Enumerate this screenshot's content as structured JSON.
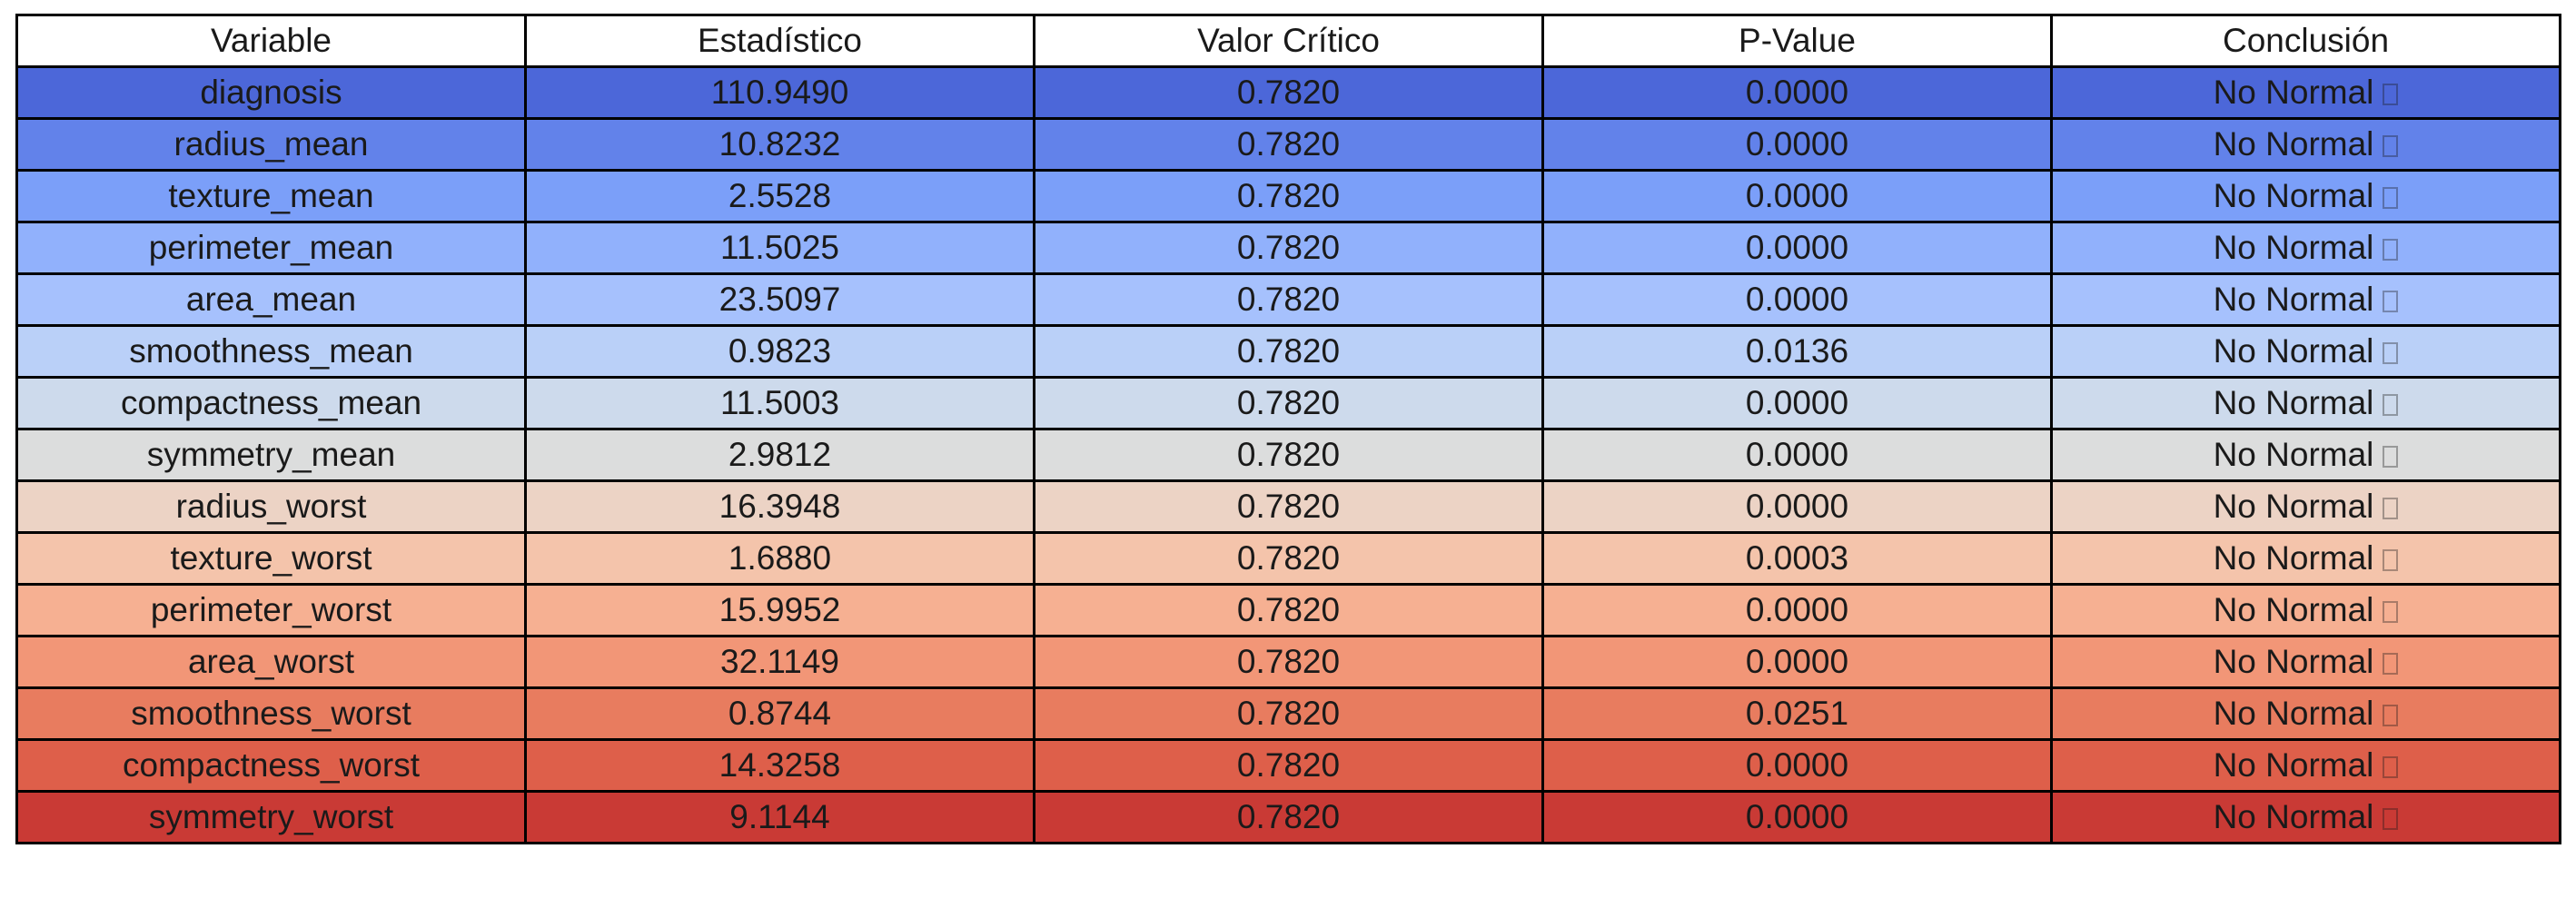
{
  "chart_data": {
    "type": "table",
    "columns": [
      "Variable",
      "Estadístico",
      "Valor Crítico",
      "P-Value",
      "Conclusión"
    ],
    "rows": [
      {
        "variable": "diagnosis",
        "estadistico": "110.9490",
        "valor_critico": "0.7820",
        "p_value": "0.0000",
        "conclusion": "No Normal",
        "color": "#4c67d9"
      },
      {
        "variable": "radius_mean",
        "estadistico": "10.8232",
        "valor_critico": "0.7820",
        "p_value": "0.0000",
        "conclusion": "No Normal",
        "color": "#6282ea"
      },
      {
        "variable": "texture_mean",
        "estadistico": "2.5528",
        "valor_critico": "0.7820",
        "p_value": "0.0000",
        "conclusion": "No Normal",
        "color": "#7b9ff9"
      },
      {
        "variable": "perimeter_mean",
        "estadistico": "11.5025",
        "valor_critico": "0.7820",
        "p_value": "0.0000",
        "conclusion": "No Normal",
        "color": "#91b1fc"
      },
      {
        "variable": "area_mean",
        "estadistico": "23.5097",
        "valor_critico": "0.7820",
        "p_value": "0.0000",
        "conclusion": "No Normal",
        "color": "#a6c1fd"
      },
      {
        "variable": "smoothness_mean",
        "estadistico": "0.9823",
        "valor_critico": "0.7820",
        "p_value": "0.0136",
        "conclusion": "No Normal",
        "color": "#bad0f8"
      },
      {
        "variable": "compactness_mean",
        "estadistico": "11.5003",
        "valor_critico": "0.7820",
        "p_value": "0.0000",
        "conclusion": "No Normal",
        "color": "#cddaec"
      },
      {
        "variable": "symmetry_mean",
        "estadistico": "2.9812",
        "valor_critico": "0.7820",
        "p_value": "0.0000",
        "conclusion": "No Normal",
        "color": "#dcdddd"
      },
      {
        "variable": "radius_worst",
        "estadistico": "16.3948",
        "valor_critico": "0.7820",
        "p_value": "0.0000",
        "conclusion": "No Normal",
        "color": "#ecd3c5"
      },
      {
        "variable": "texture_worst",
        "estadistico": "1.6880",
        "valor_critico": "0.7820",
        "p_value": "0.0003",
        "conclusion": "No Normal",
        "color": "#f4c4ab"
      },
      {
        "variable": "perimeter_worst",
        "estadistico": "15.9952",
        "valor_critico": "0.7820",
        "p_value": "0.0000",
        "conclusion": "No Normal",
        "color": "#f6b092"
      },
      {
        "variable": "area_worst",
        "estadistico": "32.1149",
        "valor_critico": "0.7820",
        "p_value": "0.0000",
        "conclusion": "No Normal",
        "color": "#f29677"
      },
      {
        "variable": "smoothness_worst",
        "estadistico": "0.8744",
        "valor_critico": "0.7820",
        "p_value": "0.0251",
        "conclusion": "No Normal",
        "color": "#e87c5f"
      },
      {
        "variable": "compactness_worst",
        "estadistico": "14.3258",
        "valor_critico": "0.7820",
        "p_value": "0.0000",
        "conclusion": "No Normal",
        "color": "#de5f4a"
      },
      {
        "variable": "symmetry_worst",
        "estadistico": "9.1144",
        "valor_critico": "0.7820",
        "p_value": "0.0000",
        "conclusion": "No Normal",
        "color": "#c93a35"
      }
    ],
    "conclusion_trailing_icon": "missing-glyph-box-icon"
  }
}
